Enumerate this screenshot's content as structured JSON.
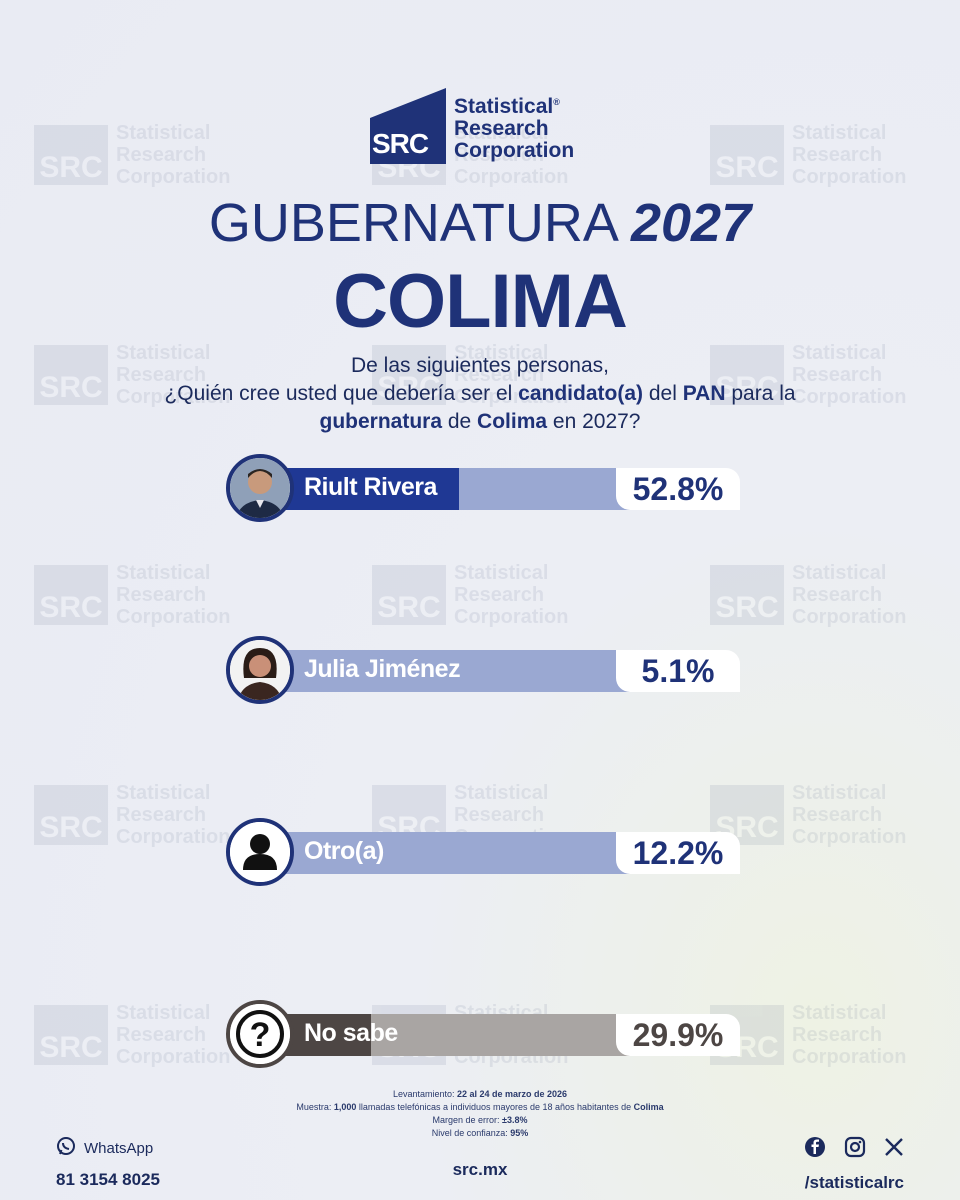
{
  "brand": {
    "logo_text": "SRC",
    "name_line1": "Statistical",
    "name_line2": "Research",
    "name_line3": "Corporation",
    "registered": "®"
  },
  "header": {
    "title_word": "GUBERNATURA",
    "title_year": "2027",
    "subtitle": "COLIMA"
  },
  "question": {
    "line1": "De las siguientes personas,",
    "line2_a": "¿Quién cree usted que debería ser el ",
    "line2_b": "candidato(a)",
    "line2_c": " del ",
    "line2_d": "PAN",
    "line2_e": " para la",
    "line3_a": "gubernatura",
    "line3_b": " de ",
    "line3_c": "Colima",
    "line3_d": " en 2027?"
  },
  "chart_data": {
    "type": "bar",
    "categories": [
      "Riult Rivera",
      "Julia Jiménez",
      "Otro(a)",
      "No sabe"
    ],
    "values": [
      52.8,
      5.1,
      12.2,
      29.9
    ],
    "value_labels": [
      "52.8%",
      "5.1%",
      "12.2%",
      "29.9%"
    ],
    "ylim": [
      0,
      100
    ],
    "colors": [
      "#1f3894",
      "#9aa8d2",
      "#9aa8d2",
      "#4d4644"
    ]
  },
  "footnote": {
    "l1_a": "Levantamiento: ",
    "l1_b": "22 al 24 de marzo de 2026",
    "l2_a": "Muestra: ",
    "l2_b": "1,000",
    "l2_c": " llamadas telefónicas a individuos mayores de 18 años habitantes de ",
    "l2_d": "Colima",
    "l3_a": "Margen de error: ",
    "l3_b": "±3.8%",
    "l4_a": "Nivel de confianza: ",
    "l4_b": "95%"
  },
  "footer": {
    "whatsapp_label": "WhatsApp",
    "whatsapp_number": "81 3154 8025",
    "site": "src.mx",
    "social_handle": "/statisticalrc",
    "icons": [
      "facebook-icon",
      "instagram-icon",
      "x-icon"
    ]
  },
  "watermark": {
    "box": "SRC",
    "l1": "Statistical",
    "l2": "Research",
    "l3": "Corporation"
  }
}
